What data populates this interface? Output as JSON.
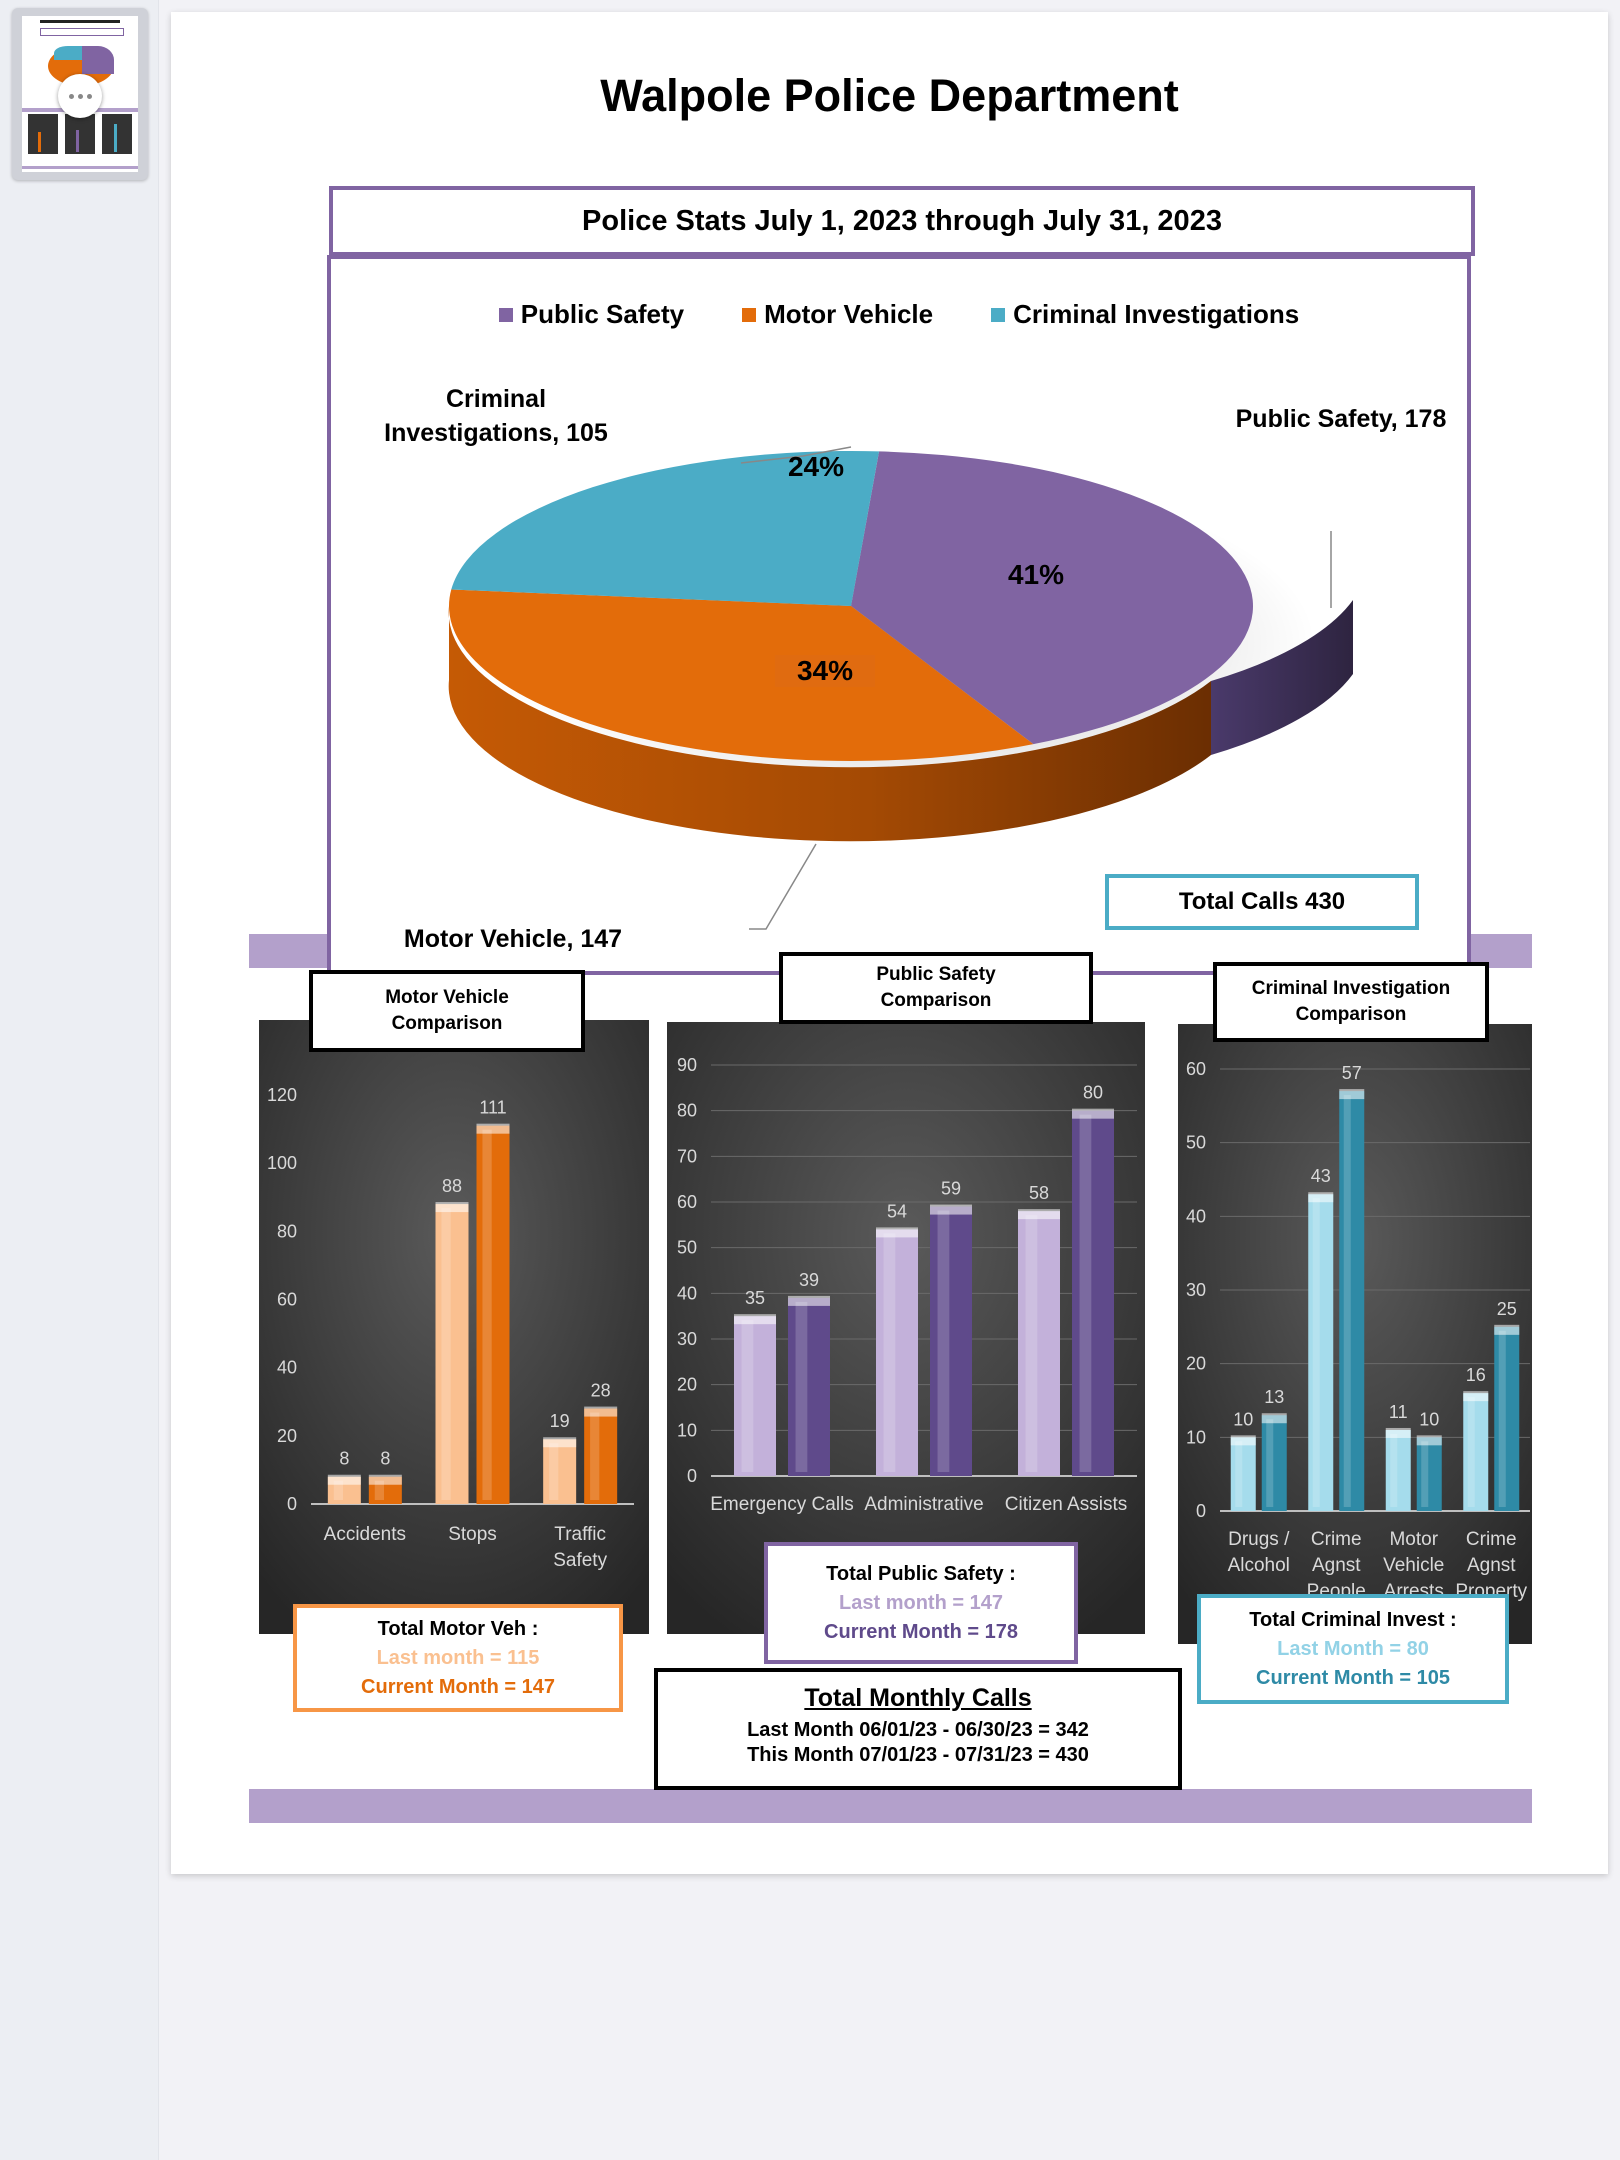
{
  "document": {
    "title": "Walpole Police Department",
    "subtitle": "Police Stats July 1, 2023  through July 31, 2023"
  },
  "pie_chart": {
    "legend": [
      "Public Safety",
      "Motor Vehicle",
      "Criminal Investigations"
    ],
    "labels": {
      "ps_name": "Public Safety, 178",
      "mv_name": "Motor Vehicle, 147",
      "ci_line1": "Criminal",
      "ci_line2": "Investigations, 105",
      "ps_pct": "41%",
      "mv_pct": "34%",
      "ci_pct": "24%"
    },
    "total_calls": "Total Calls 430"
  },
  "mv_chart": {
    "title_line1": "Motor Vehicle",
    "title_line2": "Comparison",
    "total_title": "Total Motor Veh :",
    "total_last": "Last month = 115",
    "total_current": "Current Month = 147"
  },
  "ps_chart": {
    "title_line1": "Public Safety",
    "title_line2": "Comparison",
    "total_title": "Total Public Safety :",
    "total_last": "Last month = 147",
    "total_current": "Current Month = 178"
  },
  "ci_chart": {
    "title_line1": "Criminal Investigation",
    "title_line2": "Comparison",
    "total_title": "Total Criminal Invest  :",
    "total_last": "Last Month =  80",
    "total_current": "Current Month = 105"
  },
  "monthly": {
    "heading": "Total Monthly Calls",
    "last": "Last Month  06/01/23 - 06/30/23 =  342",
    "this": "This Month  07/01/23 - 07/31/23 =  430"
  },
  "colors": {
    "purple": "#8064a2",
    "purple_light": "#c3b1da",
    "purple_dark": "#5f4a8b",
    "orange": "#e36c0a",
    "orange_light": "#fac090",
    "teal": "#4bacc6",
    "teal_light": "#a5dcec",
    "teal_dark": "#2e8aa6",
    "band": "#b3a0cb"
  },
  "chart_data": [
    {
      "type": "pie",
      "categories": [
        "Public Safety",
        "Motor Vehicle",
        "Criminal Investigations"
      ],
      "values": [
        178,
        147,
        105
      ],
      "percent": [
        41,
        34,
        24
      ],
      "legend": "top"
    },
    {
      "type": "bar",
      "title": "Motor Vehicle Comparison",
      "categories": [
        [
          "Accidents"
        ],
        [
          "Stops"
        ],
        [
          "Traffic",
          "Safety"
        ]
      ],
      "series": [
        {
          "values": [
            8,
            88,
            19
          ]
        },
        {
          "values": [
            8,
            111,
            28
          ]
        }
      ],
      "ylim": [
        0,
        120
      ],
      "yticks": [
        0,
        20,
        40,
        60,
        80,
        100,
        120
      ],
      "grid": false
    },
    {
      "type": "bar",
      "title": "Public Safety Comparison",
      "categories": [
        [
          "Emergency Calls"
        ],
        [
          "Administrative"
        ],
        [
          "Citizen Assists"
        ]
      ],
      "series": [
        {
          "values": [
            35,
            54,
            58
          ]
        },
        {
          "values": [
            39,
            59,
            80
          ]
        }
      ],
      "ylim": [
        0,
        90
      ],
      "yticks": [
        0,
        10,
        20,
        30,
        40,
        50,
        60,
        70,
        80,
        90
      ],
      "grid": true
    },
    {
      "type": "bar",
      "title": "Criminal Investigation Comparison",
      "categories": [
        [
          "Drugs /",
          "Alcohol"
        ],
        [
          "Crime",
          "Agnst",
          "People"
        ],
        [
          "Motor",
          "Vehicle",
          "Arrests"
        ],
        [
          "Crime",
          "Agnst",
          "Property"
        ]
      ],
      "series": [
        {
          "values": [
            10,
            43,
            11,
            16
          ]
        },
        {
          "values": [
            13,
            57,
            10,
            25
          ]
        }
      ],
      "ylim": [
        0,
        60
      ],
      "yticks": [
        0,
        10,
        20,
        30,
        40,
        50,
        60
      ],
      "grid": true
    }
  ]
}
